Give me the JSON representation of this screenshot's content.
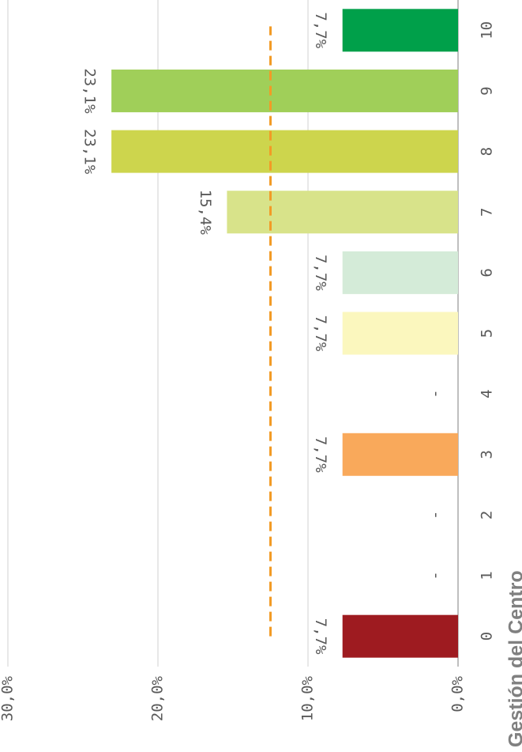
{
  "chart_data": {
    "type": "bar",
    "title": "Gestión del Centro",
    "categories": [
      "0",
      "1",
      "2",
      "3",
      "4",
      "5",
      "6",
      "7",
      "8",
      "9",
      "10"
    ],
    "values": [
      7.7,
      0,
      0,
      7.7,
      0,
      7.7,
      7.7,
      15.4,
      23.1,
      23.1,
      7.7
    ],
    "value_labels": [
      "7,7%",
      "-",
      "-",
      "7,7%",
      "-",
      "7,7%",
      "7,7%",
      "15,4%",
      "23,1%",
      "23,1%",
      "7,7%"
    ],
    "colors": [
      "#9e1b20",
      "#bfbfbf",
      "#bfbfbf",
      "#f9a95b",
      "#bfbfbf",
      "#fbf7be",
      "#d4ebd8",
      "#d8e38a",
      "#cdd54d",
      "#a0cf59",
      "#00a04a"
    ],
    "reference_line": 12.5,
    "reference_color": "#f29b26",
    "ylim": [
      0,
      30
    ],
    "yticks": [
      {
        "value": 0,
        "label": "0,0%"
      },
      {
        "value": 10,
        "label": "10,0%"
      },
      {
        "value": 20,
        "label": "20,0%"
      },
      {
        "value": 30,
        "label": "30,0%"
      }
    ],
    "grid": true
  }
}
